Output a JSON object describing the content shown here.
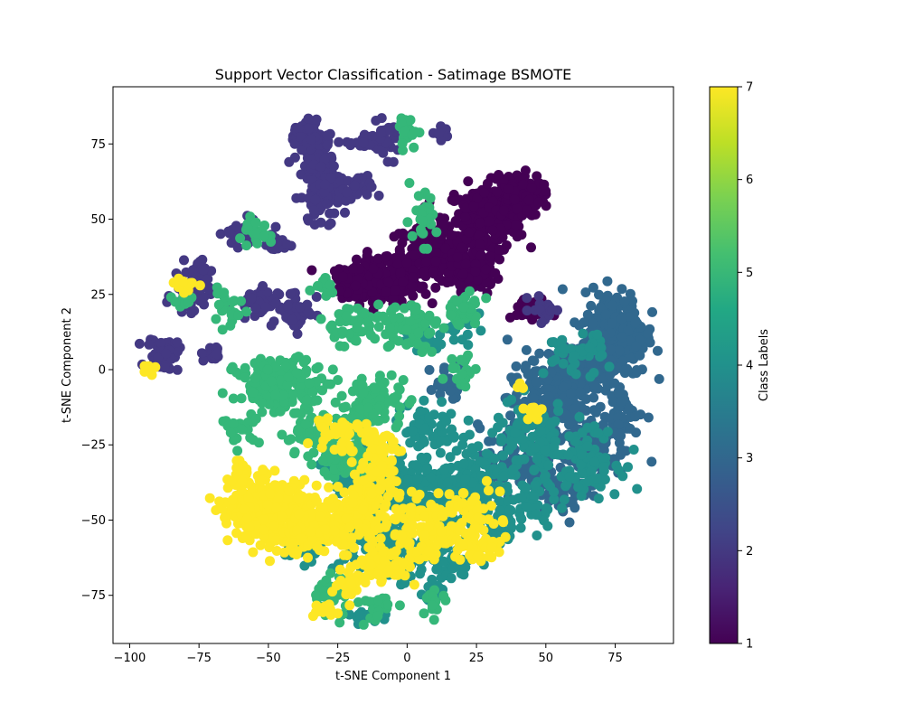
{
  "chart_data": {
    "type": "scatter",
    "title": "Support Vector Classification - Satimage BSMOTE",
    "xlabel": "t-SNE Component 1",
    "ylabel": "t-SNE Component 2",
    "xlim": [
      -106,
      96
    ],
    "ylim": [
      -91,
      94
    ],
    "xticks": [
      -100,
      -75,
      -50,
      -25,
      0,
      25,
      50,
      75
    ],
    "yticks": [
      -75,
      -50,
      -25,
      0,
      25,
      50,
      75
    ],
    "grid": false,
    "colorbar": {
      "label": "Class Labels",
      "min": 1,
      "max": 7,
      "ticks": [
        1,
        2,
        3,
        4,
        5,
        6,
        7
      ],
      "colormap": "viridis"
    },
    "clusters": [
      {
        "class": 1,
        "points": [
          [
            -10,
            29,
            10,
            5,
            220
          ],
          [
            10,
            38,
            12,
            7,
            200
          ],
          [
            28,
            50,
            10,
            8,
            220
          ],
          [
            40,
            58,
            6,
            5,
            160
          ],
          [
            22,
            32,
            8,
            4,
            80
          ],
          [
            45,
            20,
            5,
            3,
            40
          ],
          [
            -20,
            30,
            4,
            3,
            40
          ]
        ]
      },
      {
        "class": 2,
        "points": [
          [
            -32,
            68,
            4,
            9,
            180
          ],
          [
            -28,
            58,
            4,
            6,
            60
          ],
          [
            -38,
            78,
            3,
            3,
            40
          ],
          [
            -8,
            76,
            4,
            4,
            40
          ],
          [
            -60,
            45,
            4,
            3,
            40
          ],
          [
            -48,
            42,
            3,
            3,
            30
          ],
          [
            -78,
            25,
            5,
            4,
            40
          ],
          [
            -88,
            5,
            4,
            4,
            50
          ],
          [
            -40,
            20,
            5,
            5,
            40
          ],
          [
            -55,
            22,
            6,
            4,
            40
          ],
          [
            -18,
            60,
            4,
            3,
            20
          ],
          [
            -15,
            76,
            4,
            2,
            20
          ],
          [
            12,
            78,
            2,
            2,
            10
          ],
          [
            -75,
            33,
            3,
            3,
            20
          ],
          [
            -70,
            5,
            3,
            2,
            15
          ],
          [
            50,
            20,
            4,
            3,
            20
          ]
        ]
      },
      {
        "class": 3,
        "points": [
          [
            75,
            12,
            8,
            10,
            320
          ],
          [
            60,
            0,
            10,
            6,
            120
          ],
          [
            50,
            -10,
            10,
            8,
            120
          ],
          [
            65,
            -25,
            10,
            8,
            120
          ],
          [
            40,
            -30,
            10,
            8,
            100
          ],
          [
            58,
            -40,
            8,
            5,
            50
          ],
          [
            78,
            -15,
            5,
            5,
            40
          ],
          [
            15,
            -5,
            5,
            5,
            20
          ]
        ]
      },
      {
        "class": 4,
        "points": [
          [
            0,
            -40,
            12,
            8,
            200
          ],
          [
            25,
            -40,
            10,
            10,
            160
          ],
          [
            45,
            -25,
            10,
            10,
            100
          ],
          [
            65,
            -30,
            8,
            8,
            80
          ],
          [
            -10,
            -55,
            10,
            8,
            100
          ],
          [
            -20,
            -35,
            8,
            6,
            60
          ],
          [
            0,
            -65,
            6,
            5,
            40
          ],
          [
            15,
            -65,
            6,
            4,
            30
          ],
          [
            10,
            -20,
            8,
            6,
            60
          ],
          [
            30,
            -55,
            8,
            5,
            40
          ],
          [
            -38,
            -60,
            5,
            3,
            20
          ],
          [
            45,
            -45,
            6,
            6,
            40
          ],
          [
            5,
            10,
            6,
            4,
            30
          ],
          [
            60,
            5,
            8,
            5,
            40
          ],
          [
            20,
            15,
            5,
            4,
            20
          ],
          [
            10,
            -75,
            3,
            3,
            15
          ],
          [
            -15,
            -82,
            4,
            2,
            15
          ]
        ]
      },
      {
        "class": 5,
        "points": [
          [
            -45,
            -5,
            12,
            6,
            180
          ],
          [
            -30,
            -22,
            10,
            5,
            80
          ],
          [
            -20,
            -30,
            8,
            5,
            60
          ],
          [
            -10,
            -10,
            8,
            6,
            60
          ],
          [
            0,
            15,
            8,
            6,
            60
          ],
          [
            -20,
            15,
            8,
            5,
            50
          ],
          [
            20,
            20,
            5,
            4,
            40
          ],
          [
            5,
            50,
            4,
            6,
            30
          ],
          [
            -55,
            45,
            4,
            3,
            30
          ],
          [
            -65,
            20,
            5,
            4,
            20
          ],
          [
            -28,
            -75,
            5,
            5,
            40
          ],
          [
            -10,
            -78,
            5,
            4,
            20
          ],
          [
            10,
            -78,
            3,
            3,
            15
          ],
          [
            -60,
            -20,
            5,
            3,
            20
          ],
          [
            -80,
            23,
            3,
            2,
            10
          ],
          [
            0,
            78,
            3,
            4,
            20
          ],
          [
            -30,
            30,
            3,
            3,
            15
          ],
          [
            -15,
            -15,
            6,
            4,
            40
          ],
          [
            20,
            0,
            4,
            4,
            20
          ]
        ]
      },
      {
        "class": 7,
        "points": [
          [
            -50,
            -47,
            10,
            7,
            420
          ],
          [
            -35,
            -53,
            8,
            6,
            160
          ],
          [
            -20,
            -50,
            8,
            6,
            100
          ],
          [
            -12,
            -40,
            6,
            6,
            60
          ],
          [
            -10,
            -65,
            6,
            4,
            50
          ],
          [
            5,
            -55,
            10,
            8,
            100
          ],
          [
            20,
            -50,
            10,
            8,
            80
          ],
          [
            -10,
            -28,
            6,
            6,
            60
          ],
          [
            -25,
            -20,
            6,
            5,
            40
          ],
          [
            -22,
            -70,
            4,
            4,
            30
          ],
          [
            -30,
            -80,
            4,
            2,
            15
          ],
          [
            -80,
            28,
            3,
            2,
            15
          ],
          [
            -95,
            0,
            3,
            2,
            10
          ],
          [
            45,
            -15,
            3,
            3,
            10
          ],
          [
            40,
            -5,
            2,
            2,
            5
          ],
          [
            -60,
            -35,
            3,
            3,
            20
          ],
          [
            25,
            -60,
            6,
            3,
            30
          ]
        ]
      }
    ]
  }
}
